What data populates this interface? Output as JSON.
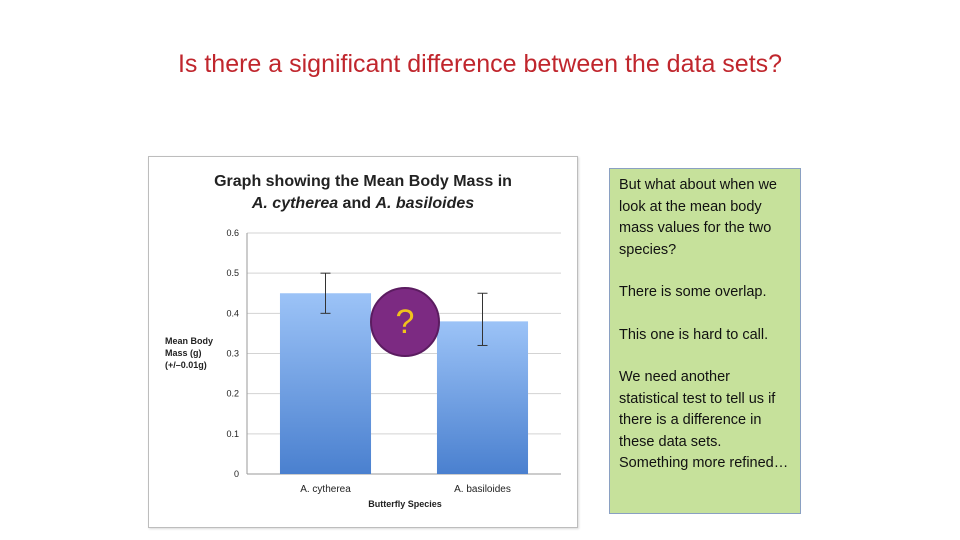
{
  "slide": {
    "title": "Is there a significant difference between the data sets?",
    "question_mark": "?"
  },
  "notes": {
    "paragraphs": [
      "But what about when we look at the mean body mass values for the two species?",
      "There is some overlap.",
      "This one is hard to call.",
      "We need another statistical test to tell us if there is a difference in these data sets. Something more refined…"
    ]
  },
  "colors": {
    "title": "#c0262d",
    "bar_top": "#9cc3f7",
    "bar_bottom": "#4a80cf",
    "notes_bg": "#c6e19b",
    "question_circle": "#7c2a82",
    "question_text": "#f0c21c"
  },
  "chart_data": {
    "type": "bar",
    "title_line1": "Graph showing the Mean Body Mass in",
    "title_line2_parts": [
      "A. cytherea",
      " and ",
      "A. basiloides"
    ],
    "ylabel_lines": [
      "Mean Body",
      "Mass (g)",
      "(+/–0.01g)"
    ],
    "xlabel": "Butterfly Species",
    "categories": [
      "A. cytherea",
      "A. basiloides"
    ],
    "values": [
      0.45,
      0.38
    ],
    "error_low": [
      0.4,
      0.32
    ],
    "error_high": [
      0.5,
      0.45
    ],
    "ylim": [
      0,
      0.6
    ],
    "yticks": [
      "0",
      "0.1",
      "0.2",
      "0.3",
      "0.4",
      "0.5",
      "0.6"
    ],
    "grid": true,
    "legend": "none"
  }
}
